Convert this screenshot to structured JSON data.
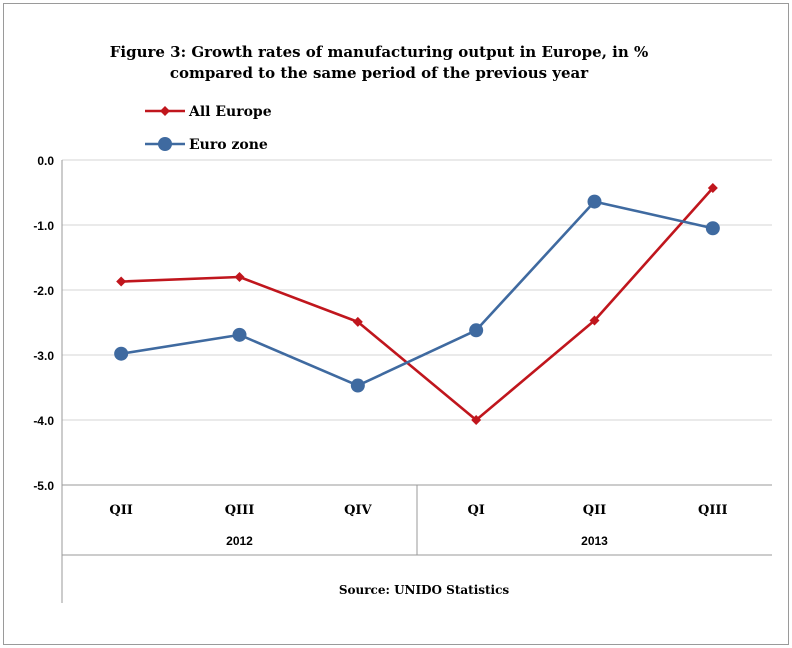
{
  "chart_data": {
    "type": "line",
    "title": "Figure 3: Growth rates of manufacturing output in Europe, in %",
    "subtitle": "compared to the same period of the previous year",
    "categories": [
      "QII",
      "QIII",
      "QIV",
      "QI",
      "QII",
      "QIII"
    ],
    "year_groups": [
      {
        "label": "2012",
        "start": 0,
        "end": 2
      },
      {
        "label": "2013",
        "start": 3,
        "end": 5
      }
    ],
    "series": [
      {
        "name": "All Europe",
        "color": "#c0161d",
        "marker": "diamond",
        "values": [
          -1.87,
          -1.8,
          -2.49,
          -4.0,
          -2.47,
          -0.43
        ]
      },
      {
        "name": "Euro zone",
        "color": "#3f6aa0",
        "marker": "circle",
        "values": [
          -2.98,
          -2.69,
          -3.47,
          -2.62,
          -0.64,
          -1.05
        ]
      }
    ],
    "ylim": [
      -5.0,
      0.0
    ],
    "yticks": [
      "0.0",
      "-1.0",
      "-2.0",
      "-3.0",
      "-4.0",
      "-5.0"
    ],
    "xlabel": "",
    "ylabel": "",
    "legend_position": "top-left",
    "grid": true,
    "source": "Source: UNIDO Statistics"
  }
}
